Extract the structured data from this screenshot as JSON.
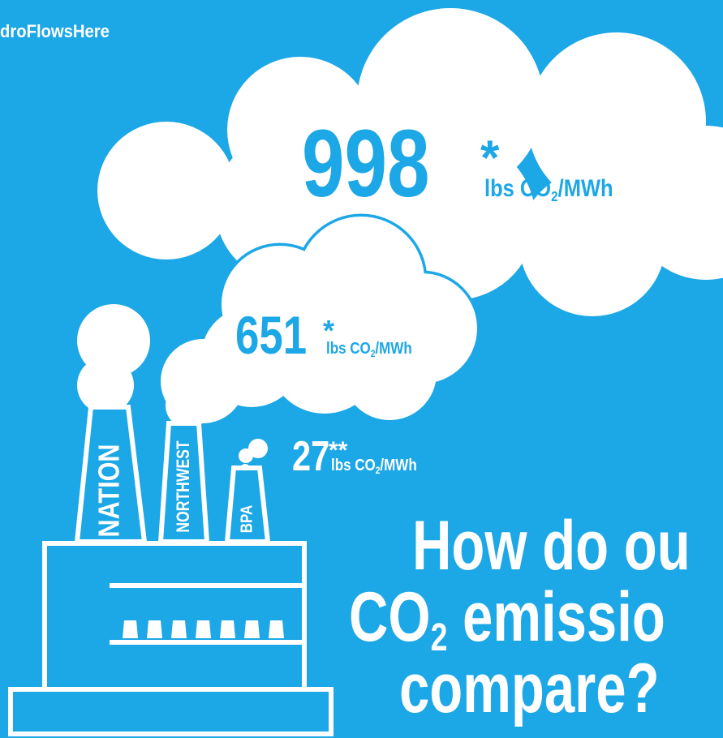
{
  "hashtag": "droFlowsHere",
  "emissions": [
    {
      "value": "998",
      "mark": "*",
      "unit_pre": "lbs CO",
      "unit_sub": "2",
      "unit_post": "/MWh"
    },
    {
      "value": "651",
      "mark": "*",
      "unit_pre": "lbs CO",
      "unit_sub": "2",
      "unit_post": "/MWh"
    },
    {
      "value": "27",
      "mark": "**",
      "unit_pre": "lbs CO",
      "unit_sub": "2",
      "unit_post": "/MWh"
    }
  ],
  "chimneys": [
    "NATION",
    "NORTHWEST",
    "BPA"
  ],
  "heading": {
    "line1": "How do ou",
    "line2_pre": "CO",
    "line2_sub": "2",
    "line2_post": " emissio",
    "line3": "compare?"
  }
}
